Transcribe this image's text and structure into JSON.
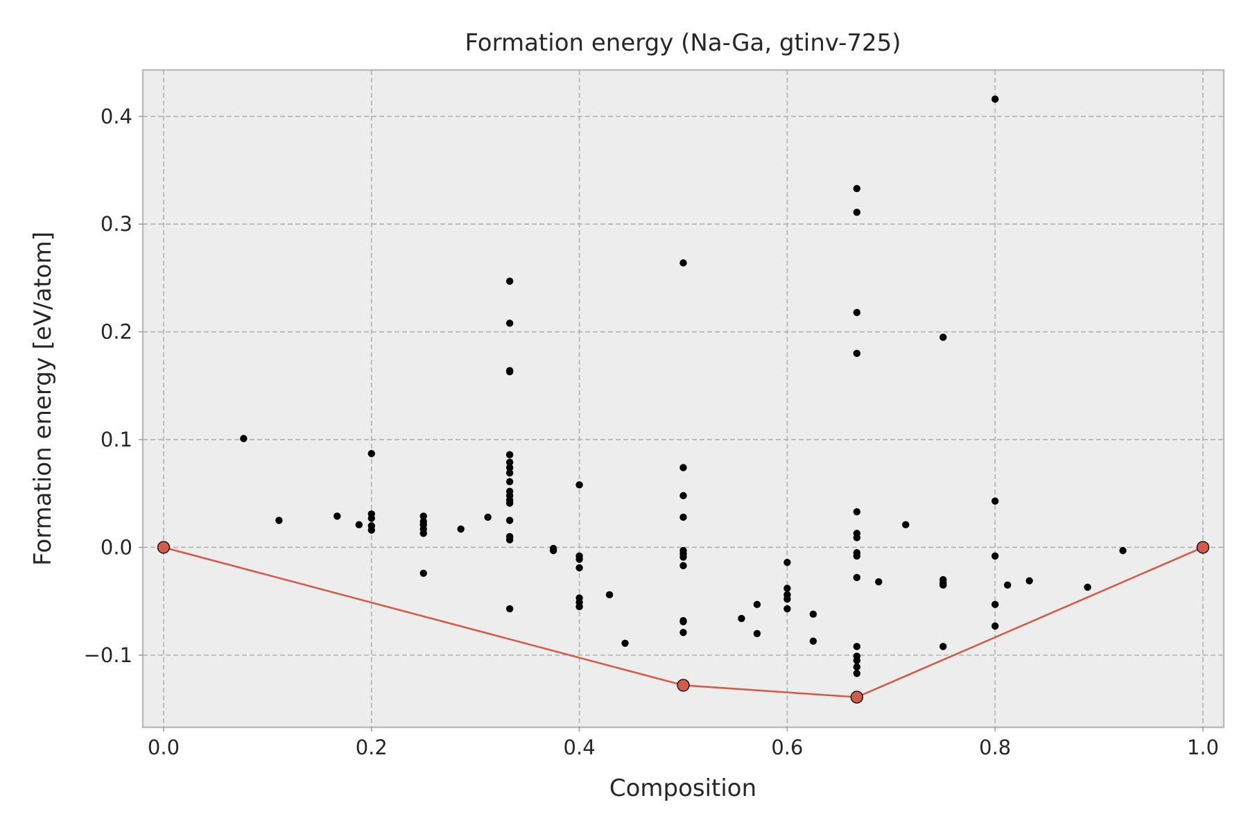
{
  "chart_data": {
    "type": "scatter",
    "title": "Formation energy (Na-Ga, gtinv-725)",
    "xlabel": "Composition",
    "ylabel": "Formation energy [eV/atom]",
    "xlim": [
      -0.02,
      1.02
    ],
    "ylim": [
      -0.167,
      0.443
    ],
    "grid": true,
    "xticks": [
      0.0,
      0.2,
      0.4,
      0.6,
      0.8,
      1.0
    ],
    "xtick_labels": [
      "0.0",
      "0.2",
      "0.4",
      "0.6",
      "0.8",
      "1.0"
    ],
    "yticks": [
      -0.1,
      0.0,
      0.1,
      0.2,
      0.3,
      0.4
    ],
    "ytick_labels": [
      "−0.1",
      "0.0",
      "0.1",
      "0.2",
      "0.3",
      "0.4"
    ],
    "colors": {
      "background": "#ededed",
      "points": "#000000",
      "hull": "#d15c48",
      "hull_edge": "#000000"
    },
    "series": [
      {
        "type": "scatter",
        "points": [
          [
            0.077,
            0.101
          ],
          [
            0.111,
            0.025
          ],
          [
            0.167,
            0.029
          ],
          [
            0.188,
            0.021
          ],
          [
            0.2,
            0.087
          ],
          [
            0.2,
            0.031
          ],
          [
            0.2,
            0.027
          ],
          [
            0.2,
            0.02
          ],
          [
            0.2,
            0.016
          ],
          [
            0.25,
            0.029
          ],
          [
            0.25,
            0.024
          ],
          [
            0.25,
            0.021
          ],
          [
            0.25,
            0.017
          ],
          [
            0.25,
            0.013
          ],
          [
            0.25,
            -0.024
          ],
          [
            0.286,
            0.017
          ],
          [
            0.312,
            0.028
          ],
          [
            0.333,
            0.247
          ],
          [
            0.333,
            0.208
          ],
          [
            0.333,
            0.164
          ],
          [
            0.333,
            0.163
          ],
          [
            0.333,
            0.086
          ],
          [
            0.333,
            0.079
          ],
          [
            0.333,
            0.074
          ],
          [
            0.333,
            0.069
          ],
          [
            0.333,
            0.061
          ],
          [
            0.333,
            0.052
          ],
          [
            0.333,
            0.048
          ],
          [
            0.333,
            0.044
          ],
          [
            0.333,
            0.041
          ],
          [
            0.333,
            0.025
          ],
          [
            0.333,
            0.01
          ],
          [
            0.333,
            0.007
          ],
          [
            0.333,
            -0.057
          ],
          [
            0.375,
            -0.001
          ],
          [
            0.375,
            -0.003
          ],
          [
            0.4,
            0.058
          ],
          [
            0.4,
            -0.008
          ],
          [
            0.4,
            -0.011
          ],
          [
            0.4,
            -0.019
          ],
          [
            0.4,
            -0.047
          ],
          [
            0.4,
            -0.051
          ],
          [
            0.4,
            -0.055
          ],
          [
            0.429,
            -0.044
          ],
          [
            0.444,
            -0.089
          ],
          [
            0.5,
            0.264
          ],
          [
            0.5,
            0.074
          ],
          [
            0.5,
            0.048
          ],
          [
            0.5,
            0.028
          ],
          [
            0.5,
            -0.003
          ],
          [
            0.5,
            -0.006
          ],
          [
            0.5,
            -0.009
          ],
          [
            0.5,
            -0.017
          ],
          [
            0.5,
            -0.068
          ],
          [
            0.5,
            -0.069
          ],
          [
            0.5,
            -0.079
          ],
          [
            0.556,
            -0.066
          ],
          [
            0.571,
            -0.053
          ],
          [
            0.571,
            -0.08
          ],
          [
            0.6,
            -0.014
          ],
          [
            0.6,
            -0.038
          ],
          [
            0.6,
            -0.044
          ],
          [
            0.6,
            -0.048
          ],
          [
            0.6,
            -0.057
          ],
          [
            0.625,
            -0.062
          ],
          [
            0.625,
            -0.087
          ],
          [
            0.667,
            0.333
          ],
          [
            0.667,
            0.311
          ],
          [
            0.667,
            0.218
          ],
          [
            0.667,
            0.18
          ],
          [
            0.667,
            0.033
          ],
          [
            0.667,
            0.013
          ],
          [
            0.667,
            0.009
          ],
          [
            0.667,
            -0.005
          ],
          [
            0.667,
            -0.008
          ],
          [
            0.667,
            -0.028
          ],
          [
            0.667,
            -0.092
          ],
          [
            0.667,
            -0.101
          ],
          [
            0.667,
            -0.105
          ],
          [
            0.667,
            -0.111
          ],
          [
            0.667,
            -0.117
          ],
          [
            0.688,
            -0.032
          ],
          [
            0.714,
            0.021
          ],
          [
            0.75,
            0.195
          ],
          [
            0.75,
            -0.03
          ],
          [
            0.75,
            -0.033
          ],
          [
            0.75,
            -0.035
          ],
          [
            0.75,
            -0.092
          ],
          [
            0.8,
            0.416
          ],
          [
            0.8,
            0.043
          ],
          [
            0.8,
            -0.008
          ],
          [
            0.8,
            -0.053
          ],
          [
            0.8,
            -0.073
          ],
          [
            0.812,
            -0.035
          ],
          [
            0.833,
            -0.031
          ],
          [
            0.889,
            -0.037
          ],
          [
            0.923,
            -0.003
          ]
        ]
      },
      {
        "type": "line",
        "points": [
          [
            0.0,
            0.0
          ],
          [
            0.5,
            -0.128
          ],
          [
            0.667,
            -0.139
          ],
          [
            1.0,
            0.0
          ]
        ]
      }
    ]
  }
}
